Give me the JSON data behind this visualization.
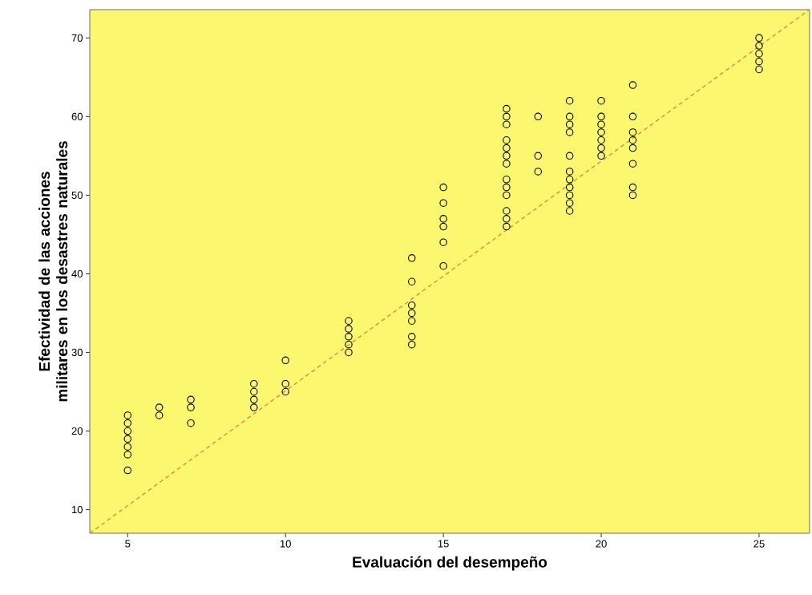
{
  "chart_data": {
    "type": "scatter",
    "xlabel": "Evaluación del desempeño",
    "ylabel": "Efectividad de las acciones militares en los desastres naturales",
    "marker": "circle",
    "grid": false,
    "xlim": [
      3.8,
      26.6
    ],
    "ylim": [
      7,
      73.6
    ],
    "xticks": [
      5,
      10,
      15,
      20,
      25
    ],
    "yticks": [
      10,
      20,
      30,
      40,
      50,
      60,
      70
    ],
    "series": [
      {
        "color": "#000000",
        "x": [
          5,
          5,
          5,
          5,
          5,
          5,
          5,
          6,
          6,
          7,
          7,
          7,
          9,
          9,
          9,
          9,
          10,
          10,
          10,
          12,
          12,
          12,
          12,
          12,
          14,
          14,
          14,
          14,
          14,
          14,
          14,
          15,
          15,
          15,
          15,
          15,
          15,
          17,
          17,
          17,
          17,
          17,
          17,
          17,
          17,
          17,
          17,
          17,
          17,
          17,
          18,
          18,
          18,
          19,
          19,
          19,
          19,
          19,
          19,
          19,
          19,
          19,
          19,
          19,
          20,
          20,
          20,
          20,
          20,
          20,
          20,
          21,
          21,
          21,
          21,
          21,
          21,
          21,
          21,
          25,
          25,
          25,
          25,
          25
        ],
        "values": [
          15,
          17,
          18,
          19,
          20,
          21,
          22,
          22,
          23,
          21,
          23,
          24,
          23,
          24,
          25,
          26,
          25,
          26,
          29,
          30,
          31,
          32,
          33,
          34,
          31,
          32,
          34,
          35,
          36,
          39,
          42,
          41,
          44,
          46,
          47,
          49,
          51,
          46,
          47,
          48,
          50,
          51,
          52,
          54,
          55,
          56,
          57,
          59,
          60,
          61,
          53,
          55,
          60,
          48,
          49,
          50,
          51,
          52,
          53,
          55,
          58,
          59,
          60,
          62,
          55,
          56,
          57,
          58,
          59,
          60,
          62,
          50,
          51,
          54,
          56,
          57,
          58,
          60,
          64,
          66,
          67,
          68,
          69,
          70
        ]
      },
      {
        "type": "line",
        "color": "#dc8440",
        "line_style": "dashed",
        "marker": "none",
        "x": [
          3.8,
          26.6
        ],
        "values": [
          7,
          73.6
        ]
      }
    ]
  }
}
